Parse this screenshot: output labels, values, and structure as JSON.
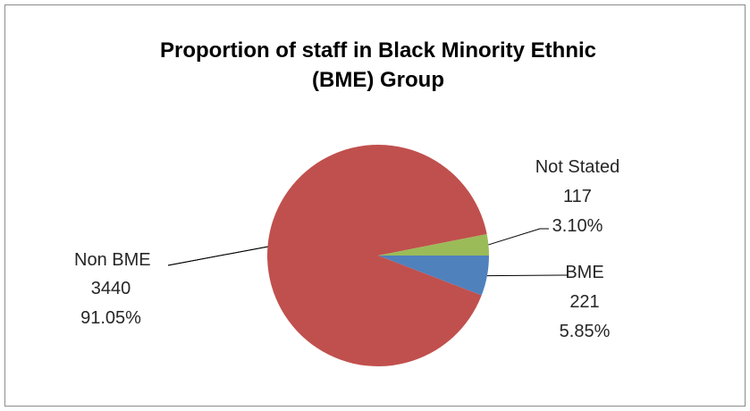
{
  "chart_data": {
    "type": "pie",
    "title": "Proportion of staff in Black Minority Ethnic (BME) Group",
    "title_lines": [
      "Proportion of staff in Black Minority Ethnic",
      "(BME) Group"
    ],
    "slices": [
      {
        "name": "BME",
        "value": 221,
        "percent": "5.85%",
        "value_label": "221",
        "color": "#4f81bd"
      },
      {
        "name": "Not Stated",
        "value": 117,
        "percent": "3.10%",
        "value_label": "117",
        "color": "#9bbb59"
      },
      {
        "name": "Non BME",
        "value": 3440,
        "percent": "91.05%",
        "value_label": "3440",
        "color": "#c0504d"
      }
    ],
    "legend": "none",
    "data_labels": "outside with leader lines"
  }
}
